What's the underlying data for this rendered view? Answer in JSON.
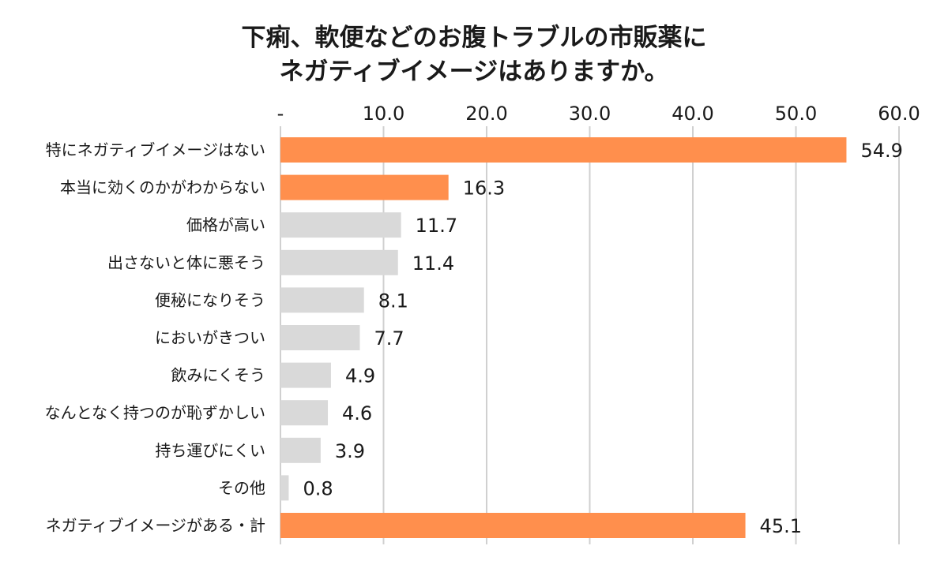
{
  "chart_data": {
    "type": "bar",
    "orientation": "horizontal",
    "title_lines": [
      "下痢、軟便などのお腹トラブルの市販薬に",
      "ネガティブイメージはありますか。"
    ],
    "categories": [
      "特にネガティブイメージはない",
      "本当に効くのかがわからない",
      "価格が高い",
      "出さないと体に悪そう",
      "便秘になりそう",
      "においがきつい",
      "飲みにくそう",
      "なんとなく持つのが恥ずかしい",
      "持ち運びにくい",
      "その他",
      "ネガティブイメージがある・計"
    ],
    "values": [
      54.9,
      16.3,
      11.7,
      11.4,
      8.1,
      7.7,
      4.9,
      4.6,
      3.9,
      0.8,
      45.1
    ],
    "value_labels": [
      "54.9",
      "16.3",
      "11.7",
      "11.4",
      "8.1",
      "7.7",
      "4.9",
      "4.6",
      "3.9",
      "0.8",
      "45.1"
    ],
    "highlighted": [
      true,
      true,
      false,
      false,
      false,
      false,
      false,
      false,
      false,
      false,
      true
    ],
    "xlim": [
      0,
      60
    ],
    "xticks": [
      0,
      10,
      20,
      30,
      40,
      50,
      60
    ],
    "xtick_labels": [
      "-",
      "10.0",
      "20.0",
      "30.0",
      "40.0",
      "50.0",
      "60.0"
    ],
    "axis_position": "top",
    "grid": true,
    "xlabel": "",
    "ylabel": ""
  },
  "colors": {
    "highlight": "#ff8f4d",
    "normal": "#d9d9d9",
    "grid": "#d0d0d0",
    "text": "#1a1a1a"
  }
}
